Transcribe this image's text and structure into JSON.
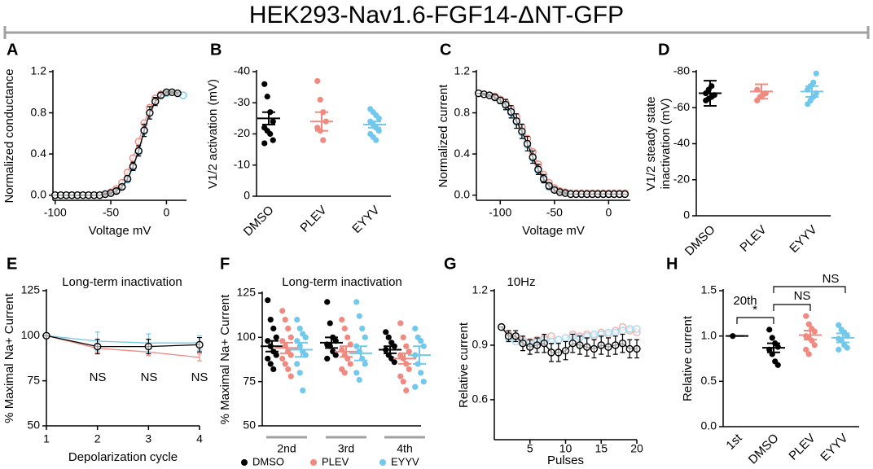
{
  "title": "HEK293-Nav1.6-FGF14-ΔNT-GFP",
  "chart_data": [
    {
      "panel": "A",
      "type": "line",
      "xlabel": "Voltage mV",
      "ylabel": "Normalized conductance",
      "x": [
        -100,
        -95,
        -90,
        -85,
        -80,
        -75,
        -70,
        -65,
        -60,
        -55,
        -50,
        -45,
        -40,
        -35,
        -30,
        -25,
        -20,
        -15,
        -10,
        -5,
        0,
        5,
        10,
        15
      ],
      "xlim": [
        -102,
        18
      ],
      "xticks": [
        -100,
        -50,
        0
      ],
      "ylim": [
        -0.05,
        1.2
      ],
      "yticks": [
        {
          "value": 0,
          "label": "0.0"
        },
        0.4,
        0.8,
        1.2
      ],
      "series": [
        {
          "name": "PLEV",
          "color": "#f08a80",
          "marker": "circle",
          "values": [
            0,
            0,
            0,
            0,
            0,
            0,
            0,
            0,
            0,
            0.01,
            0.03,
            0.06,
            0.12,
            0.22,
            0.36,
            0.52,
            0.7,
            0.85,
            0.94,
            0.98,
            1.0,
            1.0,
            0.99,
            null
          ]
        },
        {
          "name": "EYYV",
          "color": "#72c8ea",
          "marker": "circle",
          "values": [
            0,
            0,
            0,
            0,
            0,
            0,
            0,
            0,
            0,
            0.01,
            0.02,
            0.04,
            0.08,
            0.15,
            0.27,
            0.42,
            0.62,
            0.8,
            0.91,
            0.97,
            0.99,
            1.0,
            0.99,
            0.97
          ]
        },
        {
          "name": "DMSO",
          "color": "#000000",
          "marker": "circle",
          "values": [
            0,
            0,
            0,
            0,
            0,
            0,
            0,
            0,
            0,
            0.01,
            0.02,
            0.04,
            0.08,
            0.16,
            0.28,
            0.43,
            0.63,
            0.8,
            0.91,
            0.97,
            1.0,
            1.0,
            0.99,
            null
          ],
          "errors": [
            0,
            0,
            0,
            0,
            0,
            0,
            0,
            0,
            0,
            0.01,
            0.01,
            0.02,
            0.02,
            0.03,
            0.04,
            0.05,
            0.06,
            0.06,
            0.04,
            0.02,
            0.01,
            0.01,
            0.01,
            null
          ]
        }
      ]
    },
    {
      "panel": "B",
      "type": "strip",
      "ylabel": "V1/2 activation (mV)",
      "rotate_labels": true,
      "ylim": [
        0,
        -40
      ],
      "yticks": [
        -40,
        -30,
        -20,
        -10,
        0
      ],
      "groups": [
        {
          "name": "DMSO",
          "color": "#000000",
          "values": [
            -36,
            -32,
            -27,
            -24,
            -22,
            -21,
            -20,
            -18,
            -17
          ],
          "mean": -25,
          "sem": 2
        },
        {
          "name": "PLEV",
          "color": "#f08a80",
          "values": [
            -37,
            -31,
            -27,
            -24,
            -22,
            -21,
            -18
          ],
          "mean": -24,
          "sem": 3
        },
        {
          "name": "EYYV",
          "color": "#72c8ea",
          "values": [
            -28,
            -27,
            -26,
            -25,
            -24,
            -23,
            -22,
            -21,
            -20,
            -19,
            -18
          ],
          "mean": -23,
          "sem": 1
        }
      ]
    },
    {
      "panel": "C",
      "type": "line",
      "xlabel": "Voltage mV",
      "ylabel": "Normalized current",
      "x": [
        -120,
        -115,
        -110,
        -105,
        -100,
        -95,
        -90,
        -85,
        -80,
        -75,
        -70,
        -65,
        -60,
        -55,
        -50,
        -45,
        -40,
        -35,
        -30,
        -25,
        -20,
        -15,
        -10,
        -5,
        0,
        5,
        10,
        15
      ],
      "xlim": [
        -122,
        20
      ],
      "xticks": [
        -100,
        -50,
        0
      ],
      "ylim": [
        -0.05,
        1.2
      ],
      "yticks": [
        {
          "value": 0,
          "label": "0.0"
        },
        0.4,
        0.8,
        1.2
      ],
      "series": [
        {
          "name": "PLEV",
          "color": "#f08a80",
          "marker": "circle",
          "values": [
            0.99,
            0.98,
            0.97,
            0.96,
            0.93,
            0.9,
            0.84,
            0.76,
            0.66,
            0.55,
            0.42,
            0.3,
            0.2,
            0.12,
            0.07,
            0.04,
            0.03,
            0.02,
            0.02,
            0.02,
            0.02,
            0.02,
            0.02,
            0.02,
            0.02,
            0.02,
            0.02,
            0.02
          ]
        },
        {
          "name": "EYYV",
          "color": "#72c8ea",
          "marker": "circle",
          "values": [
            0.99,
            0.98,
            0.97,
            0.95,
            0.92,
            0.87,
            0.8,
            0.71,
            0.61,
            0.49,
            0.36,
            0.24,
            0.15,
            0.08,
            0.05,
            0.03,
            0.02,
            0.01,
            0.01,
            0.01,
            0.01,
            0.01,
            0.01,
            0.01,
            0.01,
            0.01,
            0.01,
            0.01
          ]
        },
        {
          "name": "DMSO",
          "color": "#000000",
          "marker": "circle",
          "values": [
            0.99,
            0.98,
            0.97,
            0.95,
            0.92,
            0.88,
            0.81,
            0.72,
            0.62,
            0.5,
            0.37,
            0.25,
            0.16,
            0.09,
            0.05,
            0.03,
            0.02,
            0.01,
            0.01,
            0.01,
            0.01,
            0.01,
            0.01,
            0.01,
            0.01,
            0.01,
            0.01,
            0.01
          ],
          "errors": [
            0,
            0.01,
            0.01,
            0.02,
            0.03,
            0.05,
            0.06,
            0.07,
            0.07,
            0.07,
            0.06,
            0.05,
            0.04,
            0.03,
            0.02,
            0.01,
            0.01,
            0,
            0,
            0,
            0,
            0,
            0,
            0,
            0,
            0,
            0,
            0
          ]
        }
      ]
    },
    {
      "panel": "D",
      "type": "strip",
      "ylabel": [
        "V1/2 steady state",
        "inactivation (mV)"
      ],
      "rotate_labels": true,
      "ylim": [
        0,
        -80
      ],
      "yticks": [
        -80,
        -60,
        -40,
        -20,
        0
      ],
      "groups": [
        {
          "name": "DMSO",
          "color": "#000000",
          "values": [
            -64,
            -65,
            -66,
            -67,
            -68,
            -70,
            -72
          ],
          "mean": -68,
          "sem": 7
        },
        {
          "name": "PLEV",
          "color": "#f08a80",
          "values": [
            -64,
            -66,
            -67,
            -68,
            -70
          ],
          "mean": -69,
          "sem": 4
        },
        {
          "name": "EYYV",
          "color": "#72c8ea",
          "values": [
            -62,
            -64,
            -66,
            -68,
            -70,
            -72,
            -74,
            -79
          ],
          "mean": -69,
          "sem": 3
        }
      ]
    },
    {
      "panel": "E",
      "type": "line",
      "title": "Long-term inactivation",
      "xlabel": "Depolarization cycle",
      "ylabel": "% Maximal Na+ Current",
      "x": [
        1,
        2,
        3,
        4
      ],
      "xlim": [
        1,
        4
      ],
      "xticks": [
        1,
        2,
        3,
        4
      ],
      "ylim": [
        50,
        125
      ],
      "yticks": [
        50,
        75,
        100,
        125
      ],
      "annotations": [
        "NS",
        "NS",
        "NS"
      ],
      "series": [
        {
          "name": "PLEV",
          "color": "#f08a80",
          "marker": "none",
          "values": [
            100,
            93,
            91,
            88
          ],
          "errors": [
            0,
            2,
            2,
            2
          ]
        },
        {
          "name": "EYYV",
          "color": "#72c8ea",
          "marker": "none",
          "values": [
            100,
            97,
            96,
            96
          ],
          "errors": [
            0,
            5,
            5,
            4
          ]
        },
        {
          "name": "DMSO",
          "color": "#000000",
          "marker": "circle",
          "values": [
            100,
            94,
            94,
            95
          ],
          "errors": [
            0,
            4,
            4,
            4
          ]
        }
      ]
    },
    {
      "panel": "F",
      "type": "strip",
      "title": "Long-term inactivation",
      "ylabel": "% Maximal Na+ Current",
      "legend": "bottom",
      "ylim": [
        50,
        125
      ],
      "yticks": [
        50,
        75,
        100,
        125
      ],
      "categories": [
        "2nd",
        "3rd",
        "4th"
      ],
      "series": [
        {
          "name": "DMSO",
          "color": "#000000",
          "values": [
            [
              121,
              110,
              105,
              100,
              98,
              95,
              92,
              90,
              88,
              85,
              82
            ],
            [
              120,
              108,
              100,
              98,
              96,
              95,
              92,
              90,
              88
            ],
            [
              103,
              100,
              97,
              95,
              93,
              90,
              88,
              86
            ]
          ],
          "mean": [
            95,
            97,
            93
          ],
          "sem": [
            3,
            3,
            2
          ]
        },
        {
          "name": "PLEV",
          "color": "#f08a80",
          "values": [
            [
              115,
              110,
              105,
              100,
              98,
              95,
              92,
              90,
              88,
              85,
              82,
              78
            ],
            [
              110,
              105,
              100,
              96,
              93,
              90,
              88,
              85,
              82,
              80
            ],
            [
              108,
              100,
              95,
              92,
              90,
              88,
              85,
              82,
              78,
              75,
              70
            ]
          ],
          "mean": [
            94,
            92,
            88
          ],
          "sem": [
            3,
            3,
            3
          ]
        },
        {
          "name": "EYYV",
          "color": "#72c8ea",
          "values": [
            [
              110,
              105,
              102,
              100,
              98,
              95,
              92,
              90,
              85,
              80,
              70
            ],
            [
              120,
              112,
              105,
              100,
              95,
              92,
              88,
              85,
              80,
              76
            ],
            [
              105,
              100,
              98,
              95,
              90,
              85,
              80,
              75,
              72
            ]
          ],
          "mean": [
            93,
            91,
            90
          ],
          "sem": [
            4,
            4,
            5
          ]
        }
      ]
    },
    {
      "panel": "G",
      "type": "line",
      "title": "10Hz",
      "xlabel": "Pulses",
      "ylabel": "Relative current",
      "x": [
        1,
        2,
        3,
        4,
        5,
        6,
        7,
        8,
        9,
        10,
        11,
        12,
        13,
        14,
        15,
        16,
        17,
        18,
        19,
        20
      ],
      "xlim": [
        0,
        20
      ],
      "xticks": [
        5,
        10,
        15,
        20
      ],
      "ylim": [
        0.38,
        1.2
      ],
      "yticks": [
        0.6,
        0.9,
        1.2
      ],
      "series": [
        {
          "name": "PLEV",
          "color": "#f4b0a9",
          "marker": "circle",
          "values": [
            1.0,
            0.96,
            0.94,
            0.93,
            0.92,
            0.93,
            0.94,
            0.95,
            0.93,
            0.94,
            0.96,
            0.95,
            0.96,
            0.95,
            0.97,
            0.96,
            0.98,
            1.0,
            0.98,
            0.97
          ]
        },
        {
          "name": "EYYV",
          "color": "#a8dcef",
          "marker": "circle",
          "values": [
            1.0,
            0.94,
            0.92,
            0.92,
            0.91,
            0.92,
            0.93,
            0.92,
            0.93,
            0.94,
            0.95,
            0.94,
            0.95,
            0.96,
            0.96,
            0.97,
            0.97,
            0.98,
            0.99,
            0.99
          ]
        },
        {
          "name": "DMSO",
          "color": "#000000",
          "marker": "circle",
          "values": [
            1.0,
            0.95,
            0.95,
            0.91,
            0.89,
            0.9,
            0.91,
            0.86,
            0.86,
            0.87,
            0.91,
            0.9,
            0.89,
            0.88,
            0.9,
            0.89,
            0.9,
            0.91,
            0.88,
            0.88
          ],
          "errors": [
            0,
            0.03,
            0.03,
            0.04,
            0.04,
            0.04,
            0.05,
            0.05,
            0.05,
            0.05,
            0.05,
            0.05,
            0.05,
            0.05,
            0.05,
            0.05,
            0.05,
            0.05,
            0.05,
            0.05
          ]
        }
      ]
    },
    {
      "panel": "H",
      "type": "strip",
      "title": "20th",
      "ylabel": "Relative current",
      "rotate_labels": true,
      "ylim": [
        0,
        1.5
      ],
      "yticks": [
        {
          "value": 0,
          "label": "0.0"
        },
        0.5,
        {
          "value": 1,
          "label": "1.0"
        },
        1.5
      ],
      "annotations": [
        "*",
        "NS",
        "NS"
      ],
      "groups": [
        {
          "name": "1st",
          "color": "#000000",
          "values": [
            1.0
          ],
          "mean": 1.0,
          "sem": 0
        },
        {
          "name": "DMSO",
          "color": "#000000",
          "values": [
            1.07,
            0.98,
            0.92,
            0.88,
            0.85,
            0.8,
            0.72,
            0.68
          ],
          "mean": 0.87,
          "sem": 0.05
        },
        {
          "name": "PLEV",
          "color": "#f08a80",
          "values": [
            1.22,
            1.13,
            1.08,
            1.05,
            1.0,
            0.98,
            0.95,
            0.9,
            0.85,
            0.8
          ],
          "mean": 1.01,
          "sem": 0.05
        },
        {
          "name": "EYYV",
          "color": "#72c8ea",
          "values": [
            1.12,
            1.07,
            1.04,
            1.0,
            0.97,
            0.95,
            0.9,
            0.87,
            0.85
          ],
          "mean": 0.98,
          "sem": 0.05
        }
      ]
    }
  ]
}
